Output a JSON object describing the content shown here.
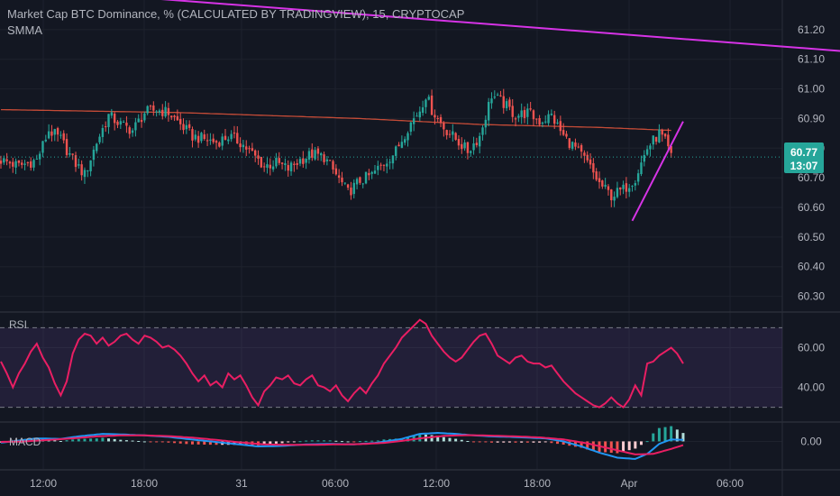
{
  "header": {
    "title": "Market Cap BTC Dominance, % (CALCULATED BY TRADINGVIEW), 15, CRYPTOCAP",
    "indicator": "SMMA"
  },
  "price_badge": {
    "price": "60.77",
    "countdown": "13:07"
  },
  "rsi_label": "RSI",
  "macd_label": "MACD",
  "colors": {
    "background": "#131722",
    "up": "#26a69a",
    "down": "#ef5350",
    "smma": "#e4553b",
    "trendline": "#d633e6",
    "rsi": "#e91e63",
    "macd": "#2196f3",
    "signal": "#e91e63",
    "price_badge": "#26a69a"
  },
  "chart_data": [
    {
      "type": "candlestick",
      "title": "Market Cap BTC Dominance, % (CALCULATED BY TRADINGVIEW), 15, CRYPTOCAP",
      "ylim": [
        60.25,
        61.3
      ],
      "y_ticks": [
        "61.20",
        "61.10",
        "61.00",
        "60.90",
        "60.80",
        "60.70",
        "60.60",
        "60.50",
        "60.40",
        "60.30"
      ],
      "x_ticks": [
        "12:00",
        "18:00",
        "31",
        "06:00",
        "12:00",
        "18:00",
        "Apr",
        "06:00"
      ],
      "close_anchors": [
        [
          0,
          60.76
        ],
        [
          6,
          60.74
        ],
        [
          12,
          60.76
        ],
        [
          16,
          60.86
        ],
        [
          20,
          60.83
        ],
        [
          24,
          60.76
        ],
        [
          28,
          60.71
        ],
        [
          32,
          60.82
        ],
        [
          36,
          60.91
        ],
        [
          40,
          60.88
        ],
        [
          44,
          60.86
        ],
        [
          48,
          60.92
        ],
        [
          52,
          60.93
        ],
        [
          56,
          60.92
        ],
        [
          60,
          60.88
        ],
        [
          64,
          60.84
        ],
        [
          68,
          60.83
        ],
        [
          72,
          60.82
        ],
        [
          76,
          60.84
        ],
        [
          80,
          60.82
        ],
        [
          84,
          60.78
        ],
        [
          88,
          60.74
        ],
        [
          92,
          60.75
        ],
        [
          96,
          60.73
        ],
        [
          100,
          60.76
        ],
        [
          104,
          60.78
        ],
        [
          108,
          60.77
        ],
        [
          112,
          60.71
        ],
        [
          116,
          60.65
        ],
        [
          120,
          60.69
        ],
        [
          124,
          60.71
        ],
        [
          128,
          60.75
        ],
        [
          132,
          60.79
        ],
        [
          136,
          60.87
        ],
        [
          140,
          60.93
        ],
        [
          142,
          60.98
        ],
        [
          144,
          60.93
        ],
        [
          148,
          60.87
        ],
        [
          152,
          60.83
        ],
        [
          156,
          60.79
        ],
        [
          160,
          60.84
        ],
        [
          164,
          60.98
        ],
        [
          168,
          60.95
        ],
        [
          172,
          60.91
        ],
        [
          176,
          60.92
        ],
        [
          180,
          60.89
        ],
        [
          184,
          60.91
        ],
        [
          188,
          60.84
        ],
        [
          192,
          60.8
        ],
        [
          196,
          60.75
        ],
        [
          200,
          60.68
        ],
        [
          204,
          60.64
        ],
        [
          208,
          60.66
        ],
        [
          212,
          60.7
        ],
        [
          216,
          60.8
        ],
        [
          220,
          60.85
        ],
        [
          222,
          60.82
        ],
        [
          224,
          60.77
        ]
      ],
      "smma": [
        [
          0,
          60.93
        ],
        [
          60,
          60.92
        ],
        [
          120,
          60.9
        ],
        [
          160,
          60.88
        ],
        [
          200,
          60.87
        ],
        [
          224,
          60.86
        ]
      ],
      "trendlines": [
        {
          "from": [
            25,
            61.325
          ],
          "to": [
            304,
            61.11
          ]
        },
        {
          "from": [
            211,
            60.555
          ],
          "to": [
            228,
            60.89
          ]
        }
      ],
      "last_price": 60.77
    },
    {
      "type": "line",
      "title": "RSI",
      "ylim": [
        23,
        77
      ],
      "y_ticks": [
        "60.00",
        "40.00"
      ],
      "bands": [
        70,
        30
      ],
      "values": [
        [
          0,
          53
        ],
        [
          2,
          47
        ],
        [
          4,
          40
        ],
        [
          6,
          47
        ],
        [
          8,
          52
        ],
        [
          10,
          58
        ],
        [
          12,
          62
        ],
        [
          14,
          55
        ],
        [
          16,
          50
        ],
        [
          18,
          42
        ],
        [
          20,
          36
        ],
        [
          22,
          43
        ],
        [
          24,
          57
        ],
        [
          26,
          64
        ],
        [
          28,
          67
        ],
        [
          30,
          66
        ],
        [
          32,
          62
        ],
        [
          34,
          65
        ],
        [
          36,
          61
        ],
        [
          38,
          63
        ],
        [
          40,
          66
        ],
        [
          42,
          67
        ],
        [
          44,
          64
        ],
        [
          46,
          62
        ],
        [
          48,
          66
        ],
        [
          50,
          65
        ],
        [
          52,
          63
        ],
        [
          54,
          60
        ],
        [
          56,
          61
        ],
        [
          58,
          59
        ],
        [
          60,
          56
        ],
        [
          62,
          52
        ],
        [
          64,
          47
        ],
        [
          66,
          43
        ],
        [
          68,
          46
        ],
        [
          70,
          41
        ],
        [
          72,
          43
        ],
        [
          74,
          40
        ],
        [
          76,
          47
        ],
        [
          78,
          44
        ],
        [
          80,
          46
        ],
        [
          82,
          41
        ],
        [
          84,
          35
        ],
        [
          86,
          31
        ],
        [
          88,
          38
        ],
        [
          90,
          41
        ],
        [
          92,
          45
        ],
        [
          94,
          44
        ],
        [
          96,
          46
        ],
        [
          98,
          42
        ],
        [
          100,
          41
        ],
        [
          102,
          44
        ],
        [
          104,
          46
        ],
        [
          106,
          41
        ],
        [
          108,
          40
        ],
        [
          110,
          38
        ],
        [
          112,
          41
        ],
        [
          114,
          36
        ],
        [
          116,
          33
        ],
        [
          118,
          37
        ],
        [
          120,
          40
        ],
        [
          122,
          37
        ],
        [
          124,
          42
        ],
        [
          126,
          46
        ],
        [
          128,
          52
        ],
        [
          130,
          56
        ],
        [
          132,
          60
        ],
        [
          134,
          65
        ],
        [
          136,
          68
        ],
        [
          138,
          71
        ],
        [
          140,
          74
        ],
        [
          142,
          72
        ],
        [
          144,
          66
        ],
        [
          146,
          62
        ],
        [
          148,
          58
        ],
        [
          150,
          55
        ],
        [
          152,
          53
        ],
        [
          154,
          55
        ],
        [
          156,
          59
        ],
        [
          158,
          63
        ],
        [
          160,
          66
        ],
        [
          162,
          67
        ],
        [
          164,
          62
        ],
        [
          166,
          56
        ],
        [
          168,
          54
        ],
        [
          170,
          52
        ],
        [
          172,
          55
        ],
        [
          174,
          56
        ],
        [
          176,
          53
        ],
        [
          178,
          52
        ],
        [
          180,
          52
        ],
        [
          182,
          50
        ],
        [
          184,
          51
        ],
        [
          186,
          47
        ],
        [
          188,
          43
        ],
        [
          190,
          40
        ],
        [
          192,
          37
        ],
        [
          194,
          35
        ],
        [
          196,
          33
        ],
        [
          198,
          31
        ],
        [
          200,
          30
        ],
        [
          202,
          32
        ],
        [
          204,
          35
        ],
        [
          206,
          32
        ],
        [
          208,
          30
        ],
        [
          210,
          34
        ],
        [
          212,
          41
        ],
        [
          214,
          36
        ],
        [
          216,
          52
        ],
        [
          218,
          53
        ],
        [
          220,
          56
        ],
        [
          222,
          58
        ],
        [
          224,
          60
        ],
        [
          226,
          57
        ],
        [
          228,
          52
        ]
      ]
    },
    {
      "type": "histogram",
      "title": "MACD",
      "ylim": [
        -0.11,
        0.07
      ],
      "y_ticks": [
        "0.00"
      ],
      "macd": [
        [
          0,
          -0.005
        ],
        [
          6,
          0.003
        ],
        [
          12,
          0.012
        ],
        [
          20,
          0.01
        ],
        [
          26,
          0.02
        ],
        [
          34,
          0.03
        ],
        [
          40,
          0.028
        ],
        [
          48,
          0.024
        ],
        [
          56,
          0.018
        ],
        [
          62,
          0.01
        ],
        [
          70,
          0.0
        ],
        [
          78,
          -0.01
        ],
        [
          86,
          -0.02
        ],
        [
          94,
          -0.018
        ],
        [
          102,
          -0.012
        ],
        [
          110,
          -0.01
        ],
        [
          118,
          -0.012
        ],
        [
          126,
          -0.005
        ],
        [
          134,
          0.01
        ],
        [
          140,
          0.03
        ],
        [
          146,
          0.034
        ],
        [
          152,
          0.03
        ],
        [
          158,
          0.024
        ],
        [
          164,
          0.02
        ],
        [
          170,
          0.018
        ],
        [
          176,
          0.015
        ],
        [
          182,
          0.012
        ],
        [
          188,
          0.0
        ],
        [
          194,
          -0.02
        ],
        [
          200,
          -0.045
        ],
        [
          206,
          -0.065
        ],
        [
          212,
          -0.07
        ],
        [
          216,
          -0.05
        ],
        [
          220,
          -0.01
        ],
        [
          224,
          0.008
        ],
        [
          228,
          0.006
        ]
      ],
      "signal": [
        [
          0,
          -0.002
        ],
        [
          8,
          0.0
        ],
        [
          16,
          0.006
        ],
        [
          24,
          0.012
        ],
        [
          32,
          0.02
        ],
        [
          40,
          0.024
        ],
        [
          48,
          0.024
        ],
        [
          56,
          0.021
        ],
        [
          64,
          0.015
        ],
        [
          72,
          0.006
        ],
        [
          80,
          -0.004
        ],
        [
          88,
          -0.012
        ],
        [
          96,
          -0.014
        ],
        [
          104,
          -0.014
        ],
        [
          112,
          -0.012
        ],
        [
          120,
          -0.011
        ],
        [
          128,
          -0.006
        ],
        [
          134,
          0.002
        ],
        [
          140,
          0.012
        ],
        [
          148,
          0.022
        ],
        [
          156,
          0.025
        ],
        [
          164,
          0.023
        ],
        [
          172,
          0.02
        ],
        [
          180,
          0.016
        ],
        [
          188,
          0.008
        ],
        [
          196,
          -0.008
        ],
        [
          204,
          -0.03
        ],
        [
          212,
          -0.052
        ],
        [
          218,
          -0.05
        ],
        [
          224,
          -0.03
        ],
        [
          228,
          -0.015
        ]
      ]
    }
  ]
}
